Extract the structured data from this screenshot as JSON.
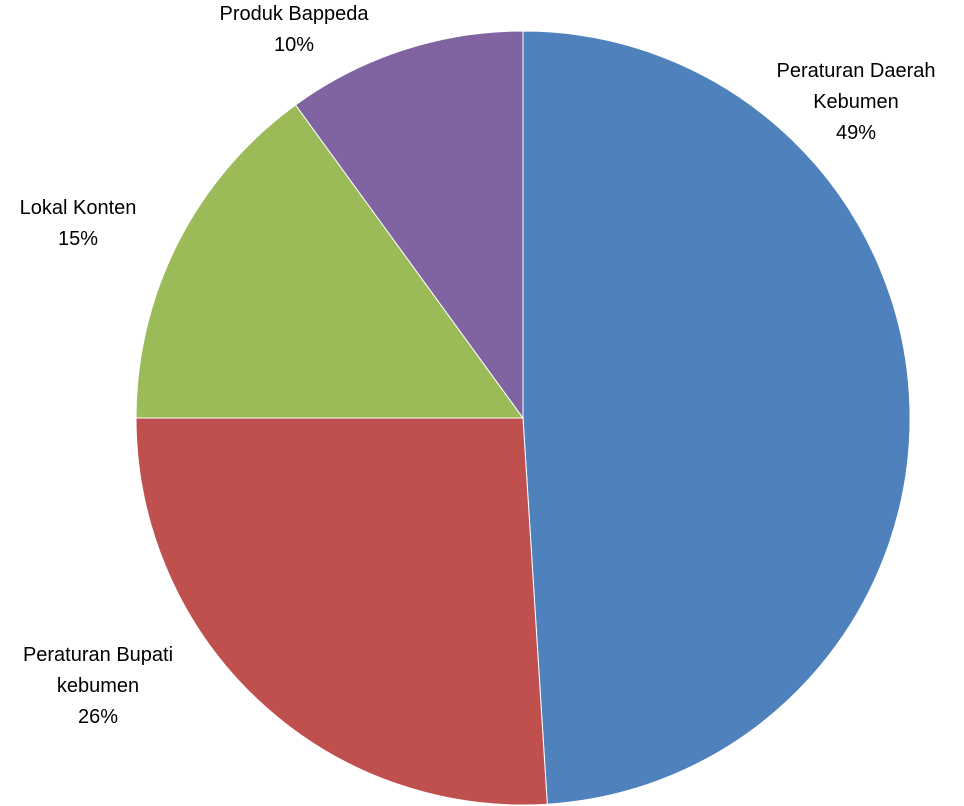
{
  "chart_data": {
    "type": "pie",
    "title": "",
    "start": "12 o'clock",
    "direction": "clockwise",
    "legend": "none",
    "slices": [
      {
        "name_lines": [
          "Peraturan Daerah",
          "Kebumen"
        ],
        "percent_label": "49%",
        "value": 49,
        "color": "#4F81BD"
      },
      {
        "name_lines": [
          "Peraturan Bupati",
          "kebumen"
        ],
        "percent_label": "26%",
        "value": 26,
        "color": "#C0504D"
      },
      {
        "name_lines": [
          "Lokal Konten"
        ],
        "percent_label": "15%",
        "value": 15,
        "color": "#9BBB59"
      },
      {
        "name_lines": [
          "Produk Bappeda"
        ],
        "percent_label": "10%",
        "value": 10,
        "color": "#8064A2"
      }
    ]
  }
}
